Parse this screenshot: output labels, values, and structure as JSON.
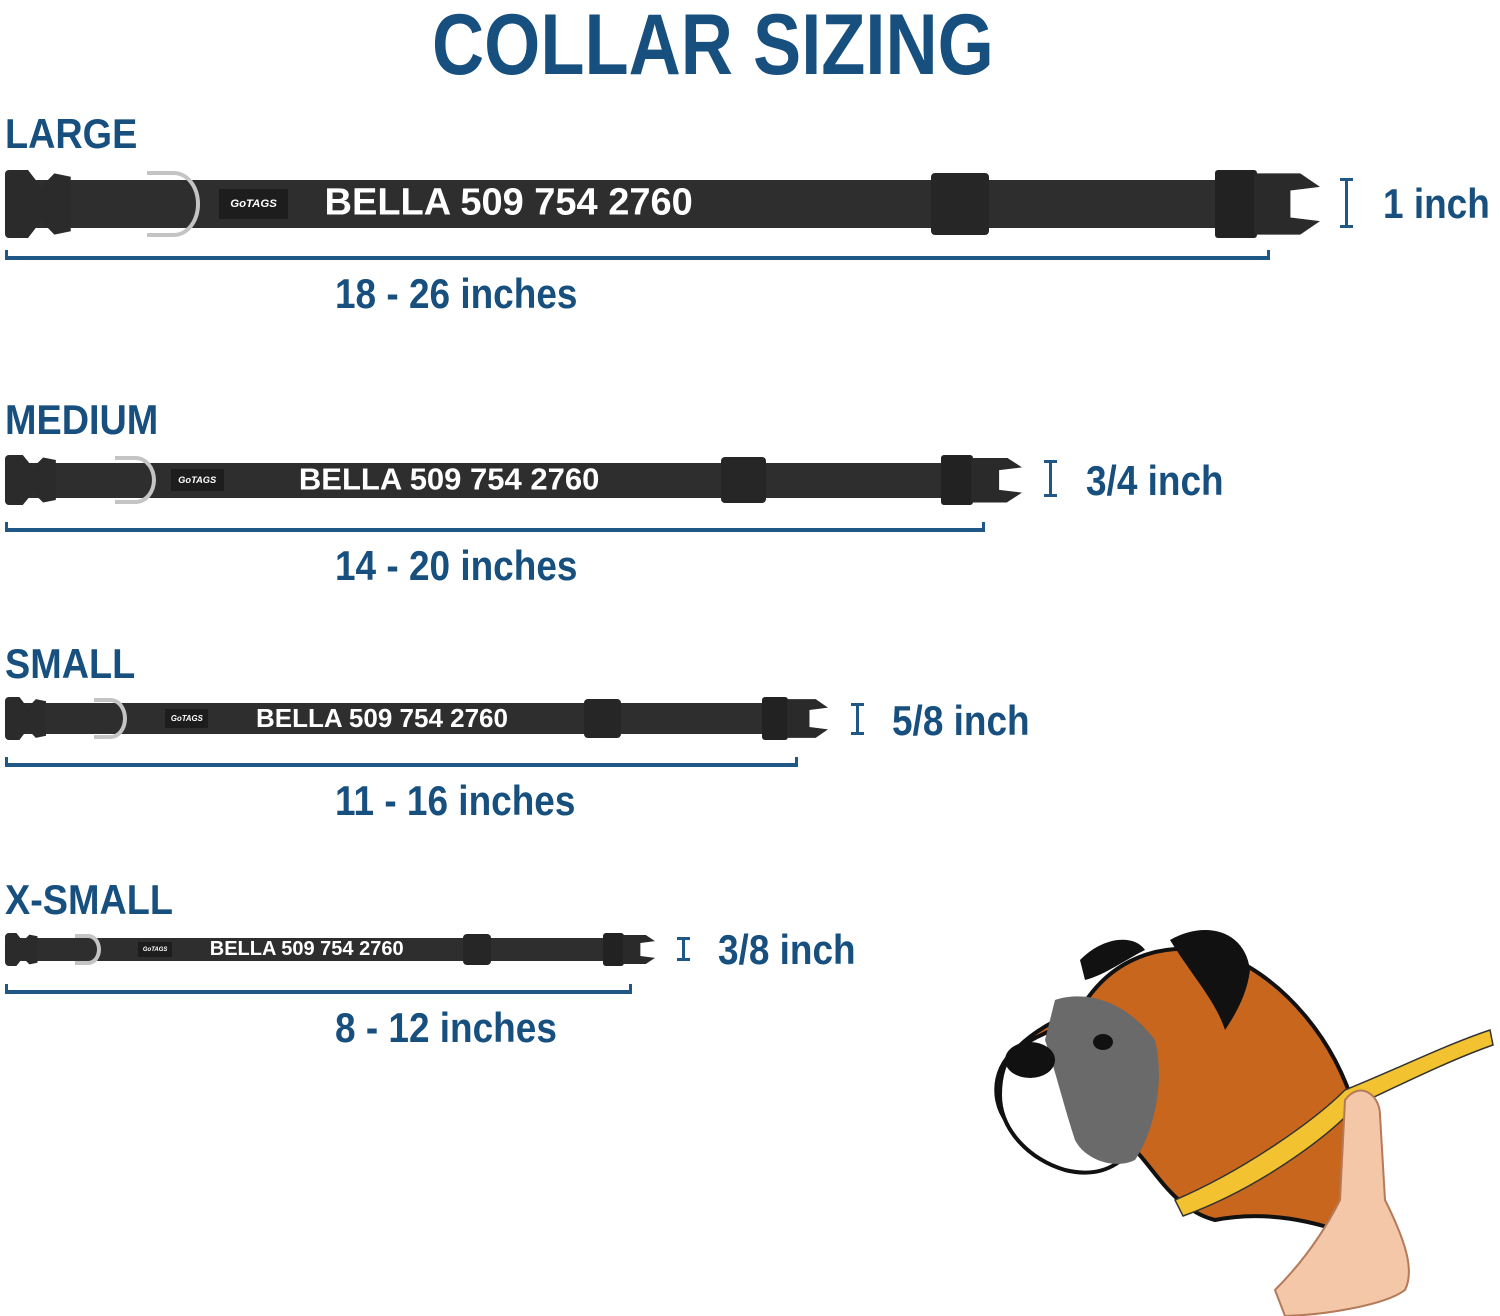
{
  "title": "COLLAR SIZING",
  "colors": {
    "accent": "#174f7e",
    "collar": "#2e2e2e",
    "ring": "#c4c4c4"
  },
  "logo_text": "GoTAGS",
  "sizes": [
    {
      "label": "LARGE",
      "name_text": "BELLA 509 754 2760",
      "width": "1 inch",
      "range": "18 - 26 inches"
    },
    {
      "label": "MEDIUM",
      "name_text": "BELLA 509 754 2760",
      "width": "3/4 inch",
      "range": "14 - 20 inches"
    },
    {
      "label": "SMALL",
      "name_text": "BELLA 509 754 2760",
      "width": "5/8 inch",
      "range": "11 - 16 inches"
    },
    {
      "label": "X-SMALL",
      "name_text": "BELLA 509 754 2760",
      "width": "3/8 inch",
      "range": "8 - 12 inches"
    }
  ],
  "illustration": "boxer-dog-neck-measuring-tape"
}
